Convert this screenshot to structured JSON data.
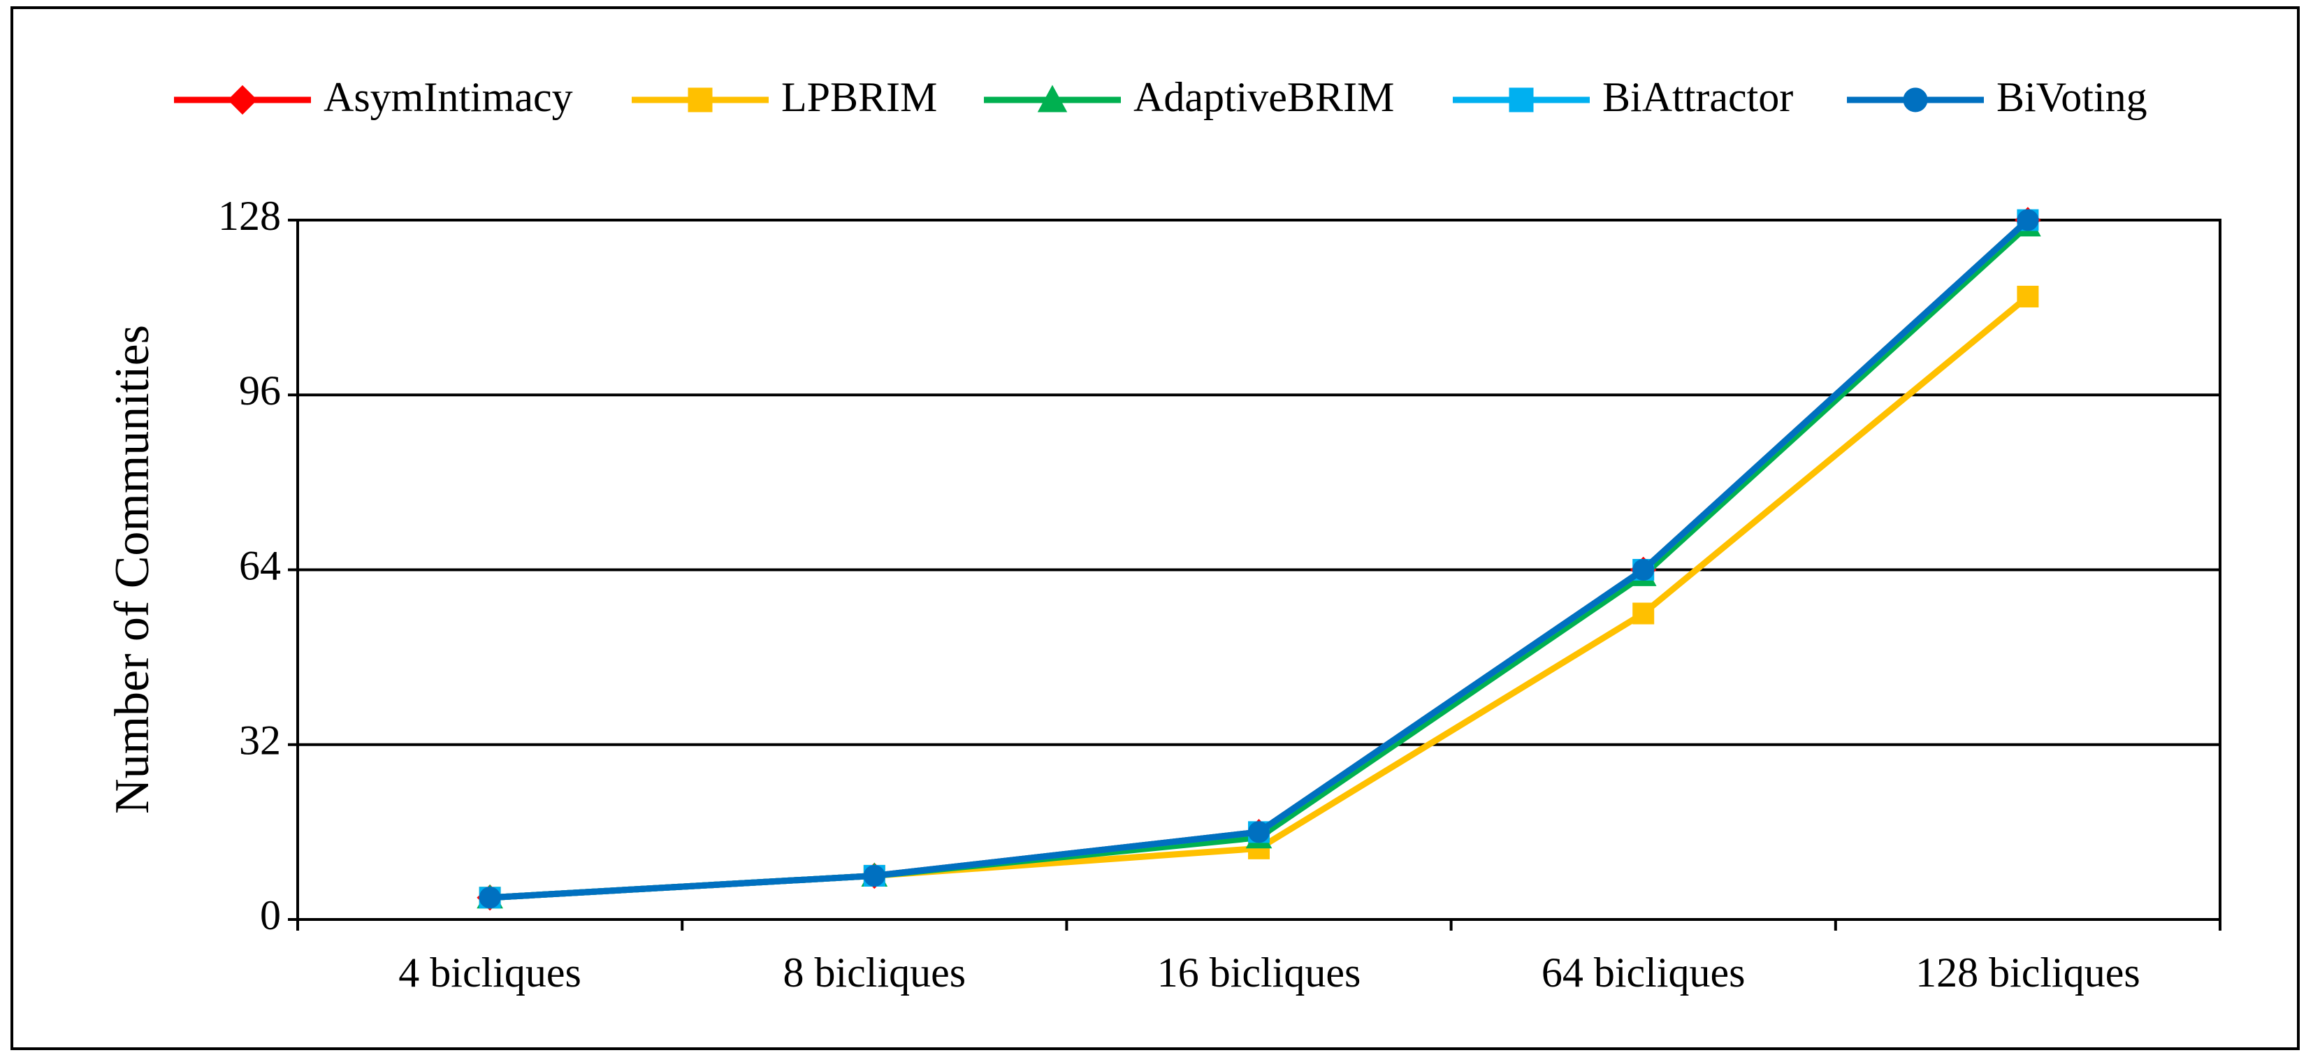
{
  "chart_data": {
    "type": "line",
    "ylabel": "Number of Communities",
    "categories": [
      "4 bicliques",
      "8 bicliques",
      "16 bicliques",
      "64 bicliques",
      "128 bicliques"
    ],
    "series": [
      {
        "name": "AsymIntimacy",
        "color": "#ff0000",
        "marker": "diamond",
        "values": [
          4,
          8,
          16,
          64,
          128
        ]
      },
      {
        "name": "LPBRIM",
        "color": "#ffc000",
        "marker": "square",
        "values": [
          4,
          8,
          13,
          56,
          114
        ]
      },
      {
        "name": "AdaptiveBRIM",
        "color": "#00b050",
        "marker": "triangle",
        "values": [
          4,
          8,
          15,
          63,
          127
        ]
      },
      {
        "name": "BiAttractor",
        "color": "#00b0f0",
        "marker": "square",
        "values": [
          4,
          8,
          16,
          64,
          128
        ]
      },
      {
        "name": "BiVoting",
        "color": "#0070c0",
        "marker": "circle",
        "values": [
          4,
          8,
          16,
          64,
          128
        ]
      }
    ],
    "ylim": [
      0,
      128
    ],
    "yticks": [
      0,
      32,
      64,
      96,
      128
    ],
    "grid": true,
    "legend": "top"
  }
}
